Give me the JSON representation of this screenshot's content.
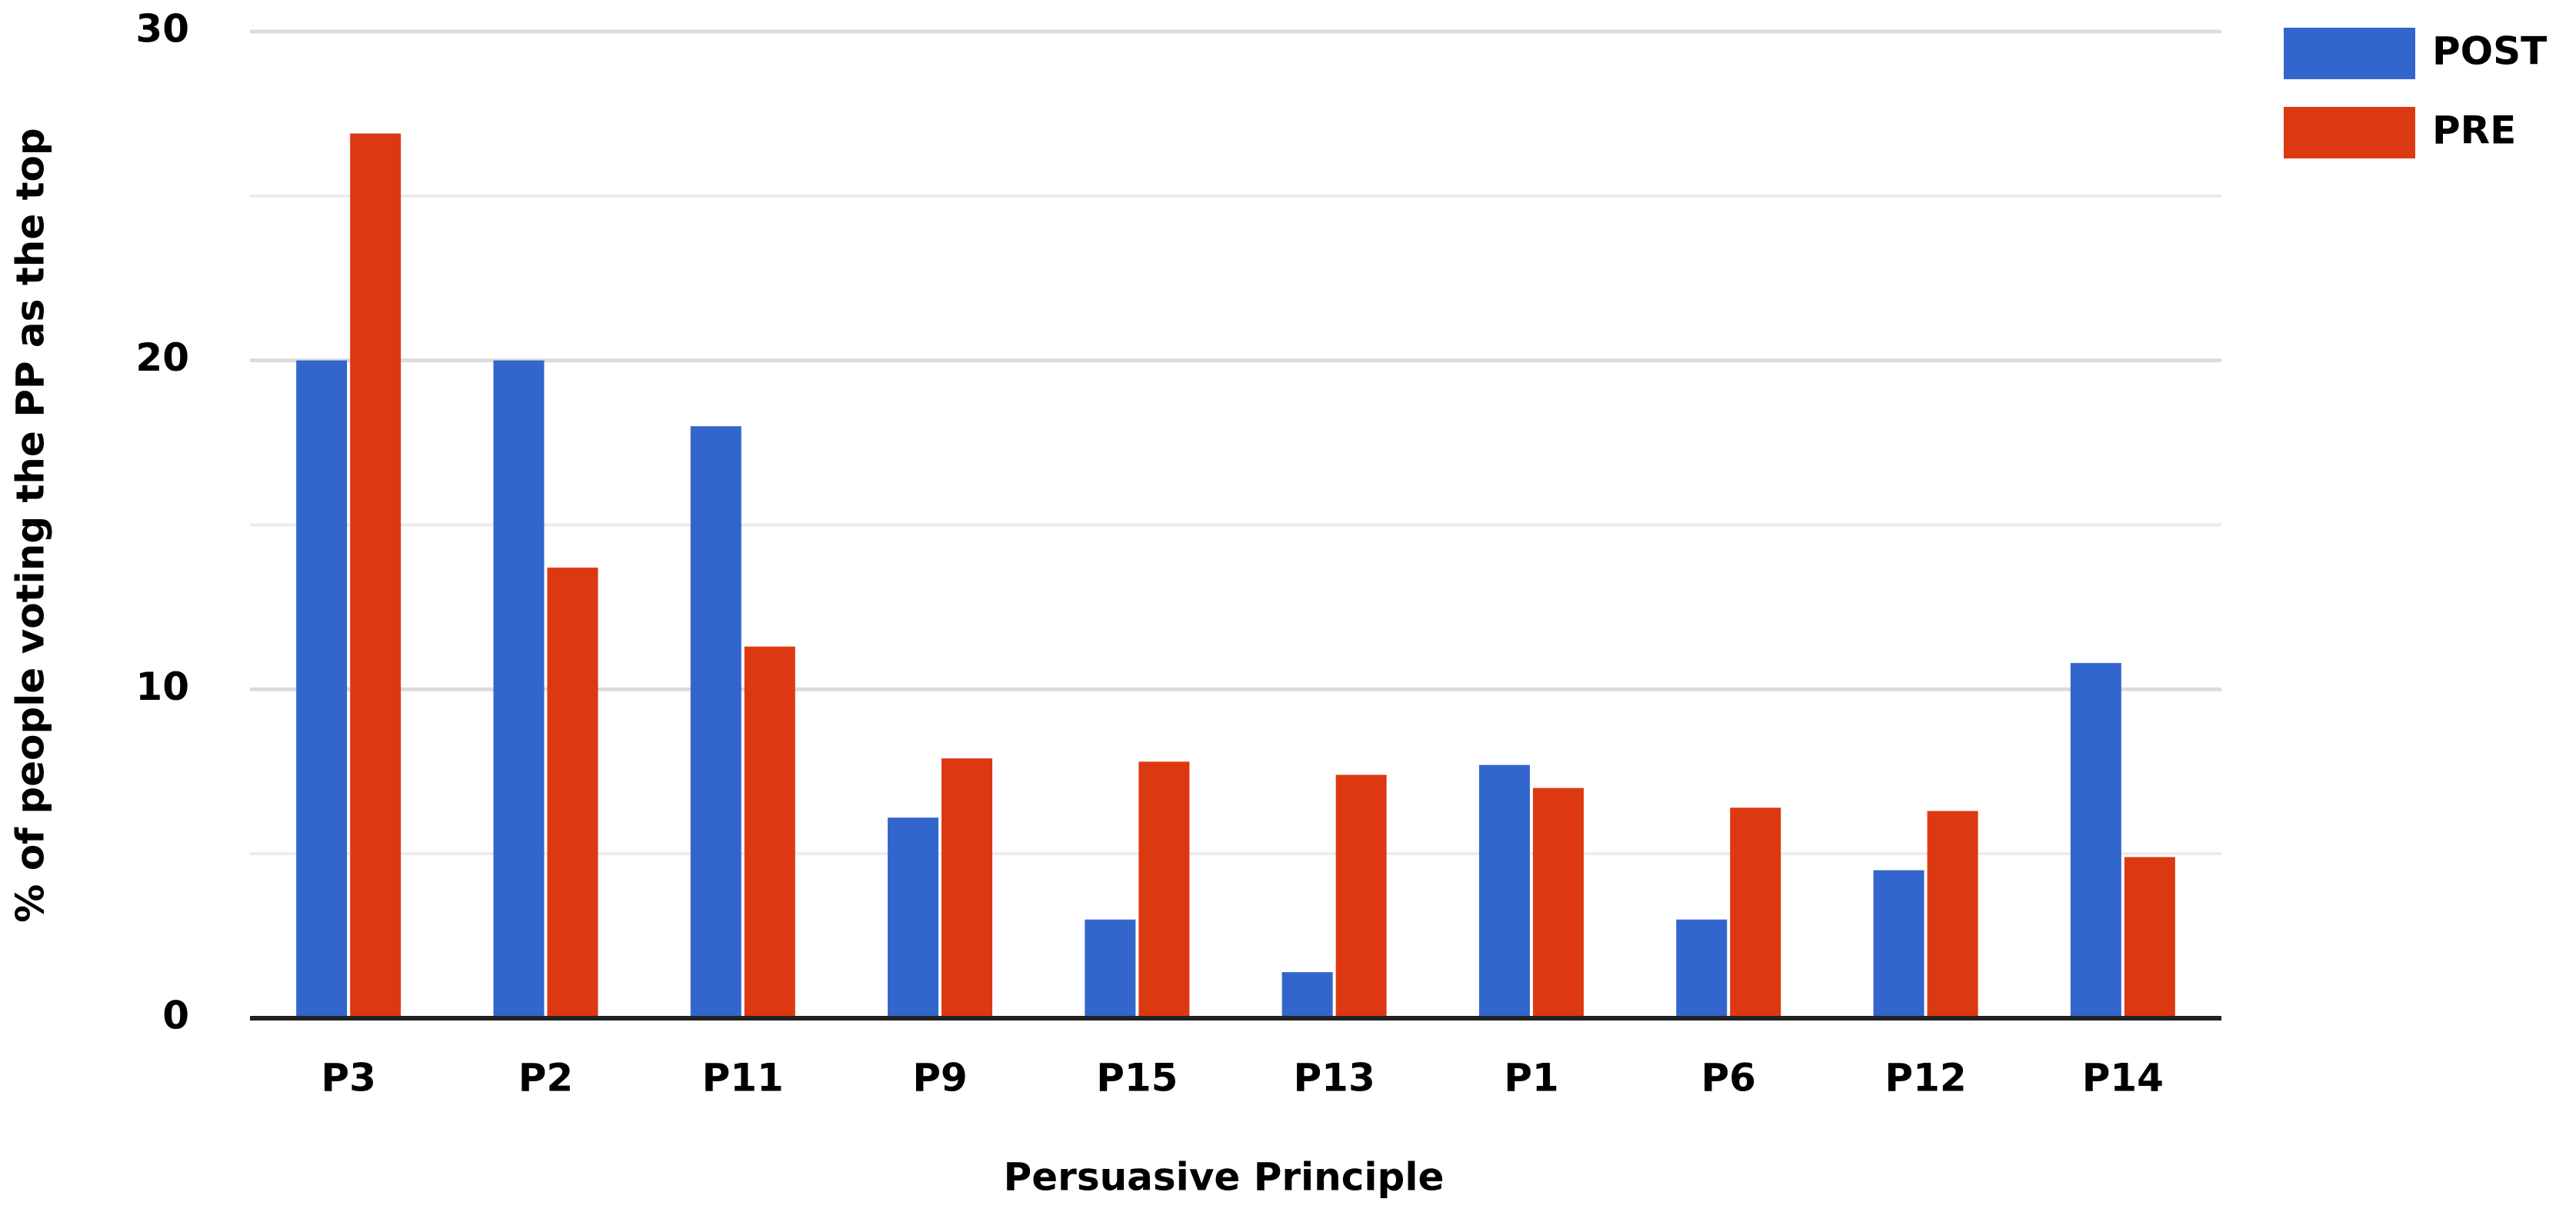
{
  "chart_data": {
    "type": "bar",
    "x_label": "Persuasive Principle",
    "y_label": "% of people voting the PP as the top",
    "categories": [
      "P3",
      "P2",
      "P11",
      "P9",
      "P15",
      "P13",
      "P1",
      "P6",
      "P12",
      "P14"
    ],
    "series": [
      {
        "name": "POST",
        "color": "#3366cc",
        "values": [
          20,
          20,
          18,
          6.1,
          3,
          1.4,
          7.7,
          3,
          4.5,
          10.8
        ]
      },
      {
        "name": "PRE",
        "color": "#dc3912",
        "values": [
          26.9,
          13.7,
          11.3,
          7.9,
          7.8,
          7.4,
          7.0,
          6.4,
          6.3,
          4.9
        ]
      }
    ],
    "ylim": [
      0,
      30
    ],
    "yticks": [
      0,
      10,
      20,
      30
    ],
    "yminor": [
      5,
      15,
      25
    ],
    "grid": true,
    "legend": "top-right"
  }
}
